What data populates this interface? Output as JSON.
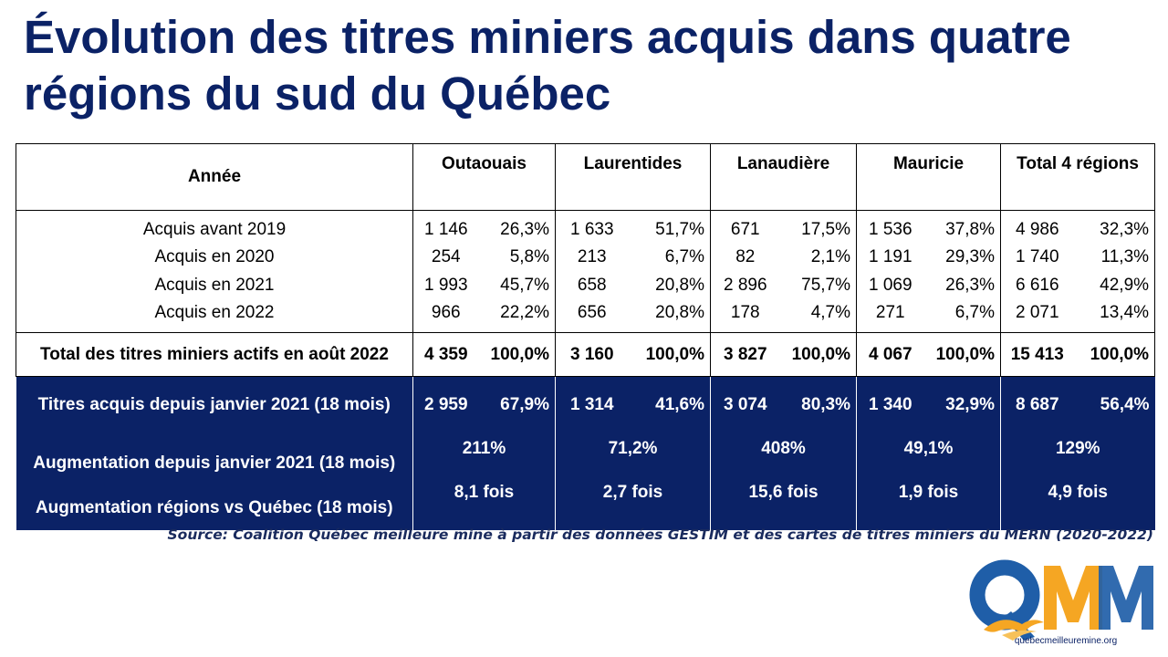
{
  "title": "Évolution des titres miniers acquis dans quatre régions du sud du Québec",
  "table": {
    "header": {
      "year": "Année",
      "regions": [
        "Outaouais",
        "Laurentides",
        "Lanaudière",
        "Mauricie",
        "Total 4 régions"
      ]
    },
    "rows": [
      {
        "label": "Acquis avant 2019",
        "cells": [
          [
            "1 146",
            "26,3%"
          ],
          [
            "1 633",
            "51,7%"
          ],
          [
            "671",
            "17,5%"
          ],
          [
            "1 536",
            "37,8%"
          ],
          [
            "4 986",
            "32,3%"
          ]
        ]
      },
      {
        "label": "Acquis en 2020",
        "cells": [
          [
            "254",
            "5,8%"
          ],
          [
            "213",
            "6,7%"
          ],
          [
            "82",
            "2,1%"
          ],
          [
            "1 191",
            "29,3%"
          ],
          [
            "1 740",
            "11,3%"
          ]
        ]
      },
      {
        "label": "Acquis en 2021",
        "cells": [
          [
            "1 993",
            "45,7%"
          ],
          [
            "658",
            "20,8%"
          ],
          [
            "2 896",
            "75,7%"
          ],
          [
            "1 069",
            "26,3%"
          ],
          [
            "6 616",
            "42,9%"
          ]
        ]
      },
      {
        "label": "Acquis en 2022",
        "cells": [
          [
            "966",
            "22,2%"
          ],
          [
            "656",
            "20,8%"
          ],
          [
            "178",
            "4,7%"
          ],
          [
            "271",
            "6,7%"
          ],
          [
            "2 071",
            "13,4%"
          ]
        ]
      }
    ],
    "total": {
      "label": "Total des titres miniers actifs en août 2022",
      "cells": [
        [
          "4 359",
          "100,0%"
        ],
        [
          "3 160",
          "100,0%"
        ],
        [
          "3 827",
          "100,0%"
        ],
        [
          "4 067",
          "100,0%"
        ],
        [
          "15 413",
          "100,0%"
        ]
      ]
    },
    "acquired": {
      "label": "Titres acquis depuis janvier 2021 (18 mois)",
      "cells": [
        [
          "2 959",
          "67,9%"
        ],
        [
          "1 314",
          "41,6%"
        ],
        [
          "3 074",
          "80,3%"
        ],
        [
          "1 340",
          "32,9%"
        ],
        [
          "8 687",
          "56,4%"
        ]
      ]
    },
    "increase": {
      "label": "Augmentation  depuis janvier 2021 (18 mois)",
      "values": [
        "211%",
        "71,2%",
        "408%",
        "49,1%",
        "129%"
      ]
    },
    "vs_quebec": {
      "label": "Augmentation  régions vs Québec (18 mois)",
      "values": [
        "8,1 fois",
        "2,7 fois",
        "15,6 fois",
        "1,9 fois",
        "4,9 fois"
      ]
    }
  },
  "source": "Source: Coalition Québec meilleure mine à partir des données GESTIM et des cartes de titres miniers du MERN (2020-2022)",
  "logo": {
    "text": "QMM",
    "url": "quebecmeilleuremine.org",
    "colors": {
      "q": "#1f5ea8",
      "m1": "#f5a623",
      "m2": "#1f5ea8"
    }
  }
}
